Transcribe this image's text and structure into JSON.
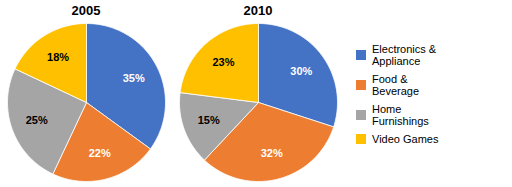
{
  "chart_data": [
    {
      "type": "pie",
      "title": "2005",
      "categories": [
        "Electronics &\nAppliance",
        "Food &\nBeverage",
        "Home\nFurnishings",
        "Video Games"
      ],
      "values": [
        35,
        22,
        25,
        18
      ],
      "value_labels": [
        "35%",
        "22%",
        "25%",
        "18%"
      ],
      "colors": [
        "#4472C4",
        "#ED7D31",
        "#A5A5A5",
        "#FFC000"
      ],
      "data_labels": true
    },
    {
      "type": "pie",
      "title": "2010",
      "categories": [
        "Electronics &\nAppliance",
        "Food &\nBeverage",
        "Home\nFurnishings",
        "Video Games"
      ],
      "values": [
        30,
        32,
        15,
        23
      ],
      "value_labels": [
        "30%",
        "32%",
        "15%",
        "23%"
      ],
      "colors": [
        "#4472C4",
        "#ED7D31",
        "#A5A5A5",
        "#FFC000"
      ],
      "data_labels": true,
      "legend": "right"
    }
  ]
}
